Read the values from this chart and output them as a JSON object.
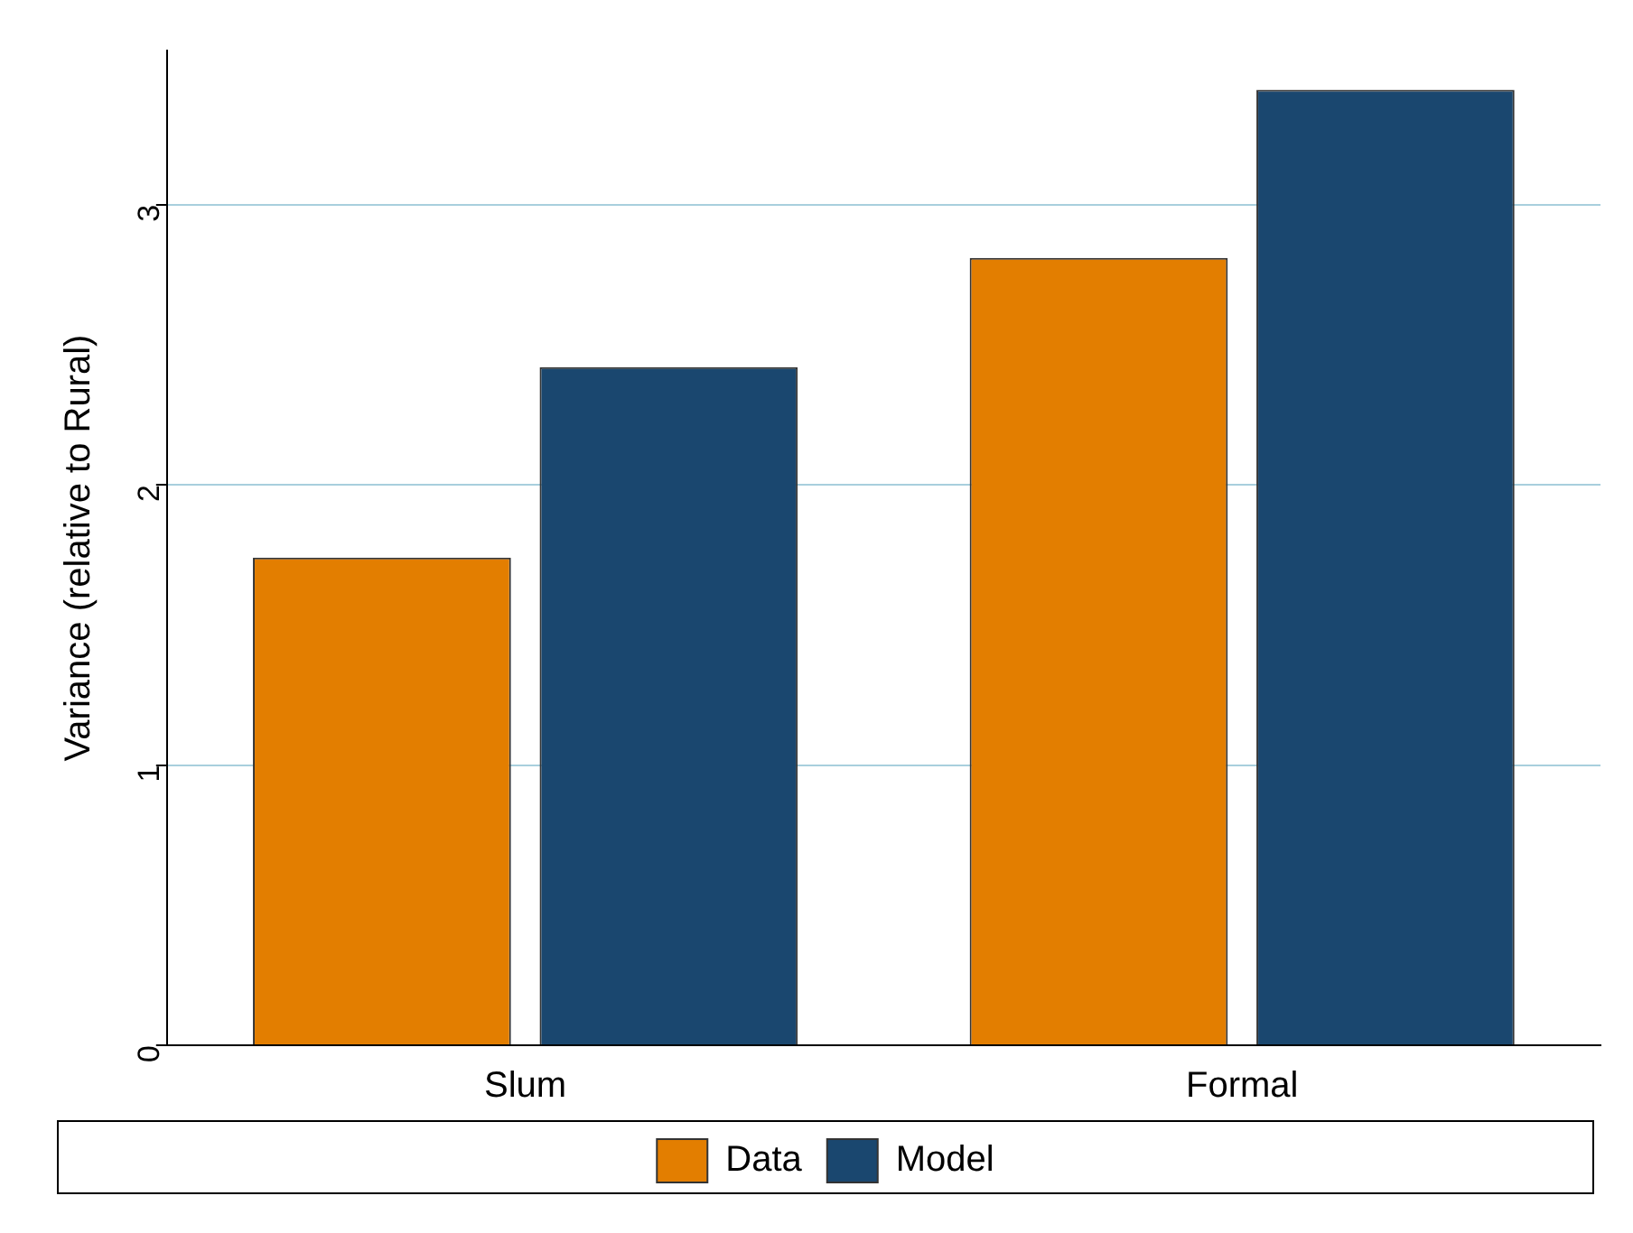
{
  "chart_data": {
    "type": "bar",
    "ylabel": "Variance (relative to Rural)",
    "categories": [
      "Slum",
      "Formal"
    ],
    "series": [
      {
        "name": "Data",
        "color": "#e37e00",
        "values": [
          1.74,
          2.81
        ]
      },
      {
        "name": "Model",
        "color": "#1a476f",
        "values": [
          2.42,
          3.41
        ]
      }
    ],
    "ylim": [
      0,
      3.55
    ],
    "yticks": [
      0,
      1,
      2,
      3
    ],
    "grid": "y",
    "legend": "bottom"
  }
}
